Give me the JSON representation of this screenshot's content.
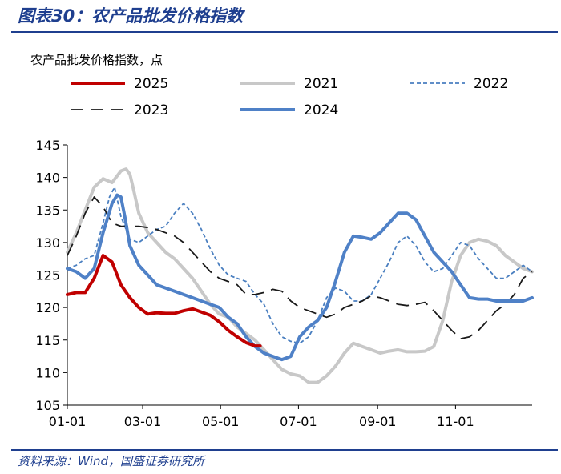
{
  "figure": {
    "title": "图表30：农产品批发价格指数",
    "source": "资料来源：Wind，国盛证券研究所"
  },
  "chart_data": {
    "type": "line",
    "title": "农产品批发价格指数",
    "ylabel": "农产品批发价格指数，点",
    "xlabel": "",
    "ylim": [
      105,
      145
    ],
    "yticks": [
      105,
      110,
      115,
      120,
      125,
      130,
      135,
      140,
      145
    ],
    "xlim": [
      0,
      364
    ],
    "xticks": [
      {
        "label": "01-01",
        "day": 0
      },
      {
        "label": "03-01",
        "day": 59
      },
      {
        "label": "05-01",
        "day": 120
      },
      {
        "label": "07-01",
        "day": 181
      },
      {
        "label": "09-01",
        "day": 243
      },
      {
        "label": "11-01",
        "day": 304
      }
    ],
    "series": [
      {
        "name": "2025",
        "color": "#c00000",
        "style": "solid",
        "width": 4,
        "x": [
          0,
          7,
          14,
          21,
          28,
          35,
          42,
          49,
          56,
          63,
          70,
          77,
          84,
          91,
          98,
          105,
          112,
          119,
          126,
          133,
          140,
          147,
          151
        ],
        "values": [
          122.0,
          122.3,
          122.3,
          124.5,
          128.0,
          127.0,
          123.5,
          121.5,
          120.0,
          119.0,
          119.2,
          119.1,
          119.1,
          119.5,
          119.8,
          119.3,
          118.8,
          117.8,
          116.5,
          115.5,
          114.6,
          114.1,
          114.1
        ]
      },
      {
        "name": "2021",
        "color": "#c8c8c8",
        "style": "solid",
        "width": 4,
        "x": [
          0,
          7,
          14,
          21,
          28,
          35,
          42,
          46,
          49,
          52,
          56,
          63,
          70,
          77,
          84,
          91,
          98,
          105,
          112,
          119,
          126,
          133,
          140,
          147,
          154,
          161,
          168,
          175,
          182,
          189,
          196,
          203,
          210,
          217,
          224,
          231,
          238,
          245,
          252,
          259,
          266,
          273,
          280,
          287,
          294,
          301,
          308,
          315,
          322,
          329,
          336,
          343,
          350,
          357,
          364
        ],
        "values": [
          128.5,
          131.5,
          135.0,
          138.5,
          139.8,
          139.2,
          141.0,
          141.3,
          140.5,
          138.0,
          134.5,
          131.5,
          130.0,
          128.5,
          127.5,
          126.0,
          124.5,
          122.5,
          120.5,
          119.0,
          118.5,
          117.0,
          116.0,
          115.0,
          113.5,
          112.0,
          110.5,
          109.8,
          109.5,
          108.5,
          108.5,
          109.5,
          111.0,
          113.0,
          114.5,
          114.0,
          113.5,
          113.0,
          113.3,
          113.5,
          113.2,
          113.2,
          113.3,
          114.0,
          118.0,
          124.0,
          128.0,
          130.0,
          130.5,
          130.2,
          129.5,
          128.0,
          127.0,
          126.0,
          125.5
        ]
      },
      {
        "name": "2022",
        "color": "#4a7fc0",
        "style": "shortdash",
        "width": 1.8,
        "x": [
          0,
          7,
          14,
          21,
          28,
          33,
          37,
          42,
          49,
          56,
          63,
          70,
          77,
          84,
          91,
          98,
          105,
          112,
          119,
          126,
          133,
          140,
          147,
          154,
          161,
          168,
          175,
          182,
          189,
          196,
          203,
          210,
          217,
          224,
          231,
          238,
          245,
          252,
          259,
          266,
          273,
          280,
          287,
          294,
          301,
          308,
          315,
          322,
          329,
          336,
          343,
          350,
          357,
          364
        ],
        "values": [
          126.0,
          126.5,
          127.5,
          128.0,
          133.0,
          137.0,
          138.5,
          134.0,
          130.5,
          130.0,
          131.0,
          132.0,
          132.5,
          134.5,
          136.0,
          134.5,
          132.0,
          129.0,
          126.5,
          125.0,
          124.5,
          124.0,
          122.0,
          120.5,
          117.5,
          115.5,
          114.8,
          114.5,
          115.5,
          118.0,
          121.5,
          123.0,
          122.5,
          121.0,
          121.0,
          122.0,
          124.5,
          127.0,
          130.0,
          131.0,
          129.5,
          127.0,
          125.5,
          126.0,
          128.0,
          130.0,
          129.5,
          127.5,
          126.0,
          124.5,
          124.5,
          125.5,
          126.5,
          125.5
        ]
      },
      {
        "name": "2023",
        "color": "#1a1a1a",
        "style": "longdash",
        "width": 1.8,
        "x": [
          0,
          7,
          14,
          21,
          28,
          35,
          42,
          49,
          56,
          63,
          70,
          77,
          84,
          91,
          98,
          105,
          112,
          119,
          126,
          133,
          140,
          147,
          154,
          161,
          168,
          175,
          182,
          189,
          196,
          203,
          210,
          217,
          224,
          231,
          238,
          245,
          252,
          259,
          266,
          273,
          280,
          287,
          294,
          301,
          308,
          315,
          322,
          329,
          336,
          343,
          350,
          357,
          364
        ],
        "values": [
          128.0,
          131.0,
          134.5,
          137.0,
          135.5,
          133.0,
          132.5,
          132.5,
          132.5,
          132.3,
          132.0,
          131.5,
          131.0,
          130.0,
          128.5,
          127.0,
          125.5,
          124.5,
          124.0,
          123.5,
          122.0,
          122.0,
          122.3,
          122.8,
          122.5,
          121.0,
          120.0,
          119.5,
          119.0,
          118.5,
          119.0,
          120.0,
          120.5,
          121.0,
          121.8,
          121.5,
          121.0,
          120.5,
          120.3,
          120.5,
          120.8,
          119.5,
          118.0,
          116.5,
          115.2,
          115.5,
          116.5,
          118.0,
          119.5,
          120.5,
          122.0,
          124.5,
          125.5
        ]
      },
      {
        "name": "2024",
        "color": "#4f81c7",
        "style": "solid",
        "width": 4,
        "x": [
          0,
          7,
          14,
          21,
          28,
          35,
          39,
          42,
          45,
          49,
          56,
          63,
          70,
          77,
          84,
          91,
          98,
          105,
          112,
          119,
          126,
          133,
          140,
          147,
          154,
          161,
          168,
          175,
          182,
          189,
          196,
          203,
          210,
          217,
          224,
          231,
          238,
          245,
          252,
          259,
          266,
          273,
          280,
          287,
          294,
          301,
          308,
          315,
          322,
          329,
          336,
          343,
          350,
          357,
          364
        ],
        "values": [
          126.0,
          125.5,
          124.5,
          126.0,
          131.5,
          136.0,
          137.3,
          137.0,
          134.0,
          129.5,
          126.5,
          125.0,
          123.5,
          123.0,
          122.5,
          122.0,
          121.5,
          121.0,
          120.5,
          120.0,
          118.5,
          117.5,
          115.5,
          114.0,
          113.0,
          112.5,
          112.0,
          112.5,
          115.5,
          117.0,
          118.0,
          120.0,
          124.0,
          128.5,
          131.0,
          130.8,
          130.5,
          131.5,
          133.0,
          134.5,
          134.5,
          133.5,
          131.0,
          128.5,
          127.0,
          125.5,
          123.5,
          121.5,
          121.3,
          121.3,
          121.0,
          121.0,
          121.0,
          121.0,
          121.5
        ]
      }
    ],
    "legend": [
      {
        "name": "2025",
        "row": 0,
        "col": 0
      },
      {
        "name": "2021",
        "row": 0,
        "col": 1
      },
      {
        "name": "2022",
        "row": 0,
        "col": 2
      },
      {
        "name": "2023",
        "row": 1,
        "col": 0
      },
      {
        "name": "2024",
        "row": 1,
        "col": 1
      }
    ],
    "grid": false
  }
}
